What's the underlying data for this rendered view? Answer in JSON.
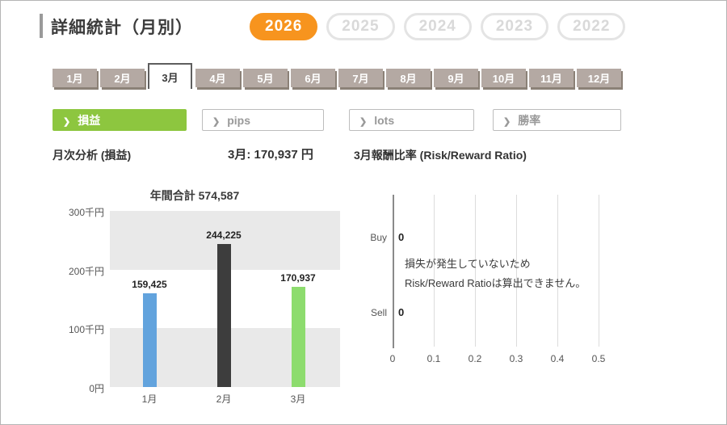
{
  "panel": {
    "title": "詳細統計（月別）"
  },
  "years": [
    {
      "label": "2026",
      "active": true
    },
    {
      "label": "2025",
      "active": false
    },
    {
      "label": "2024",
      "active": false
    },
    {
      "label": "2023",
      "active": false
    },
    {
      "label": "2022",
      "active": false
    }
  ],
  "months": [
    "1月",
    "2月",
    "3月",
    "4月",
    "5月",
    "6月",
    "7月",
    "8月",
    "9月",
    "10月",
    "11月",
    "12月"
  ],
  "active_month": "3月",
  "categories": [
    {
      "label": "損益",
      "active": true
    },
    {
      "label": "pips",
      "active": false
    },
    {
      "label": "lots",
      "active": false
    },
    {
      "label": "勝率",
      "active": false
    }
  ],
  "headers": {
    "monthly_analysis": "月次分析 (損益)",
    "month_value": "3月:  170,937 円",
    "risk_reward": "3月報酬比率 (Risk/Reward Ratio)"
  },
  "colors": {
    "accent_orange": "#f7941e",
    "active_green": "#8dc63f",
    "tab_taupe": "#b4a9a3",
    "bar_blue": "#62a3dd",
    "bar_dark": "#3d3d3d",
    "bar_green": "#8ddc6e"
  },
  "chart_data": [
    {
      "type": "bar",
      "title": "年間合計 574,587",
      "categories": [
        "1月",
        "2月",
        "3月"
      ],
      "values": [
        159425,
        244225,
        170937
      ],
      "value_labels": [
        "159,425",
        "244,225",
        "170,937"
      ],
      "bar_colors": [
        "#62a3dd",
        "#3d3d3d",
        "#8ddc6e"
      ],
      "y_ticks_top_down": [
        "300千円",
        "200千円",
        "100千円",
        "0円"
      ],
      "ylim": [
        0,
        300000
      ],
      "grid": "banded",
      "legend": "none"
    },
    {
      "type": "bar",
      "orientation": "horizontal",
      "title": "3月報酬比率 (Risk/Reward Ratio)",
      "categories": [
        "Buy",
        "Sell"
      ],
      "values": [
        0,
        0
      ],
      "value_labels": [
        "0",
        "0"
      ],
      "x_ticks": [
        "0",
        "0.1",
        "0.2",
        "0.3",
        "0.4",
        "0.5"
      ],
      "xlim": [
        0,
        0.5
      ],
      "grid": "vertical",
      "note_lines": [
        "損失が発生していないため",
        "Risk/Reward Ratioは算出できません。"
      ]
    }
  ]
}
